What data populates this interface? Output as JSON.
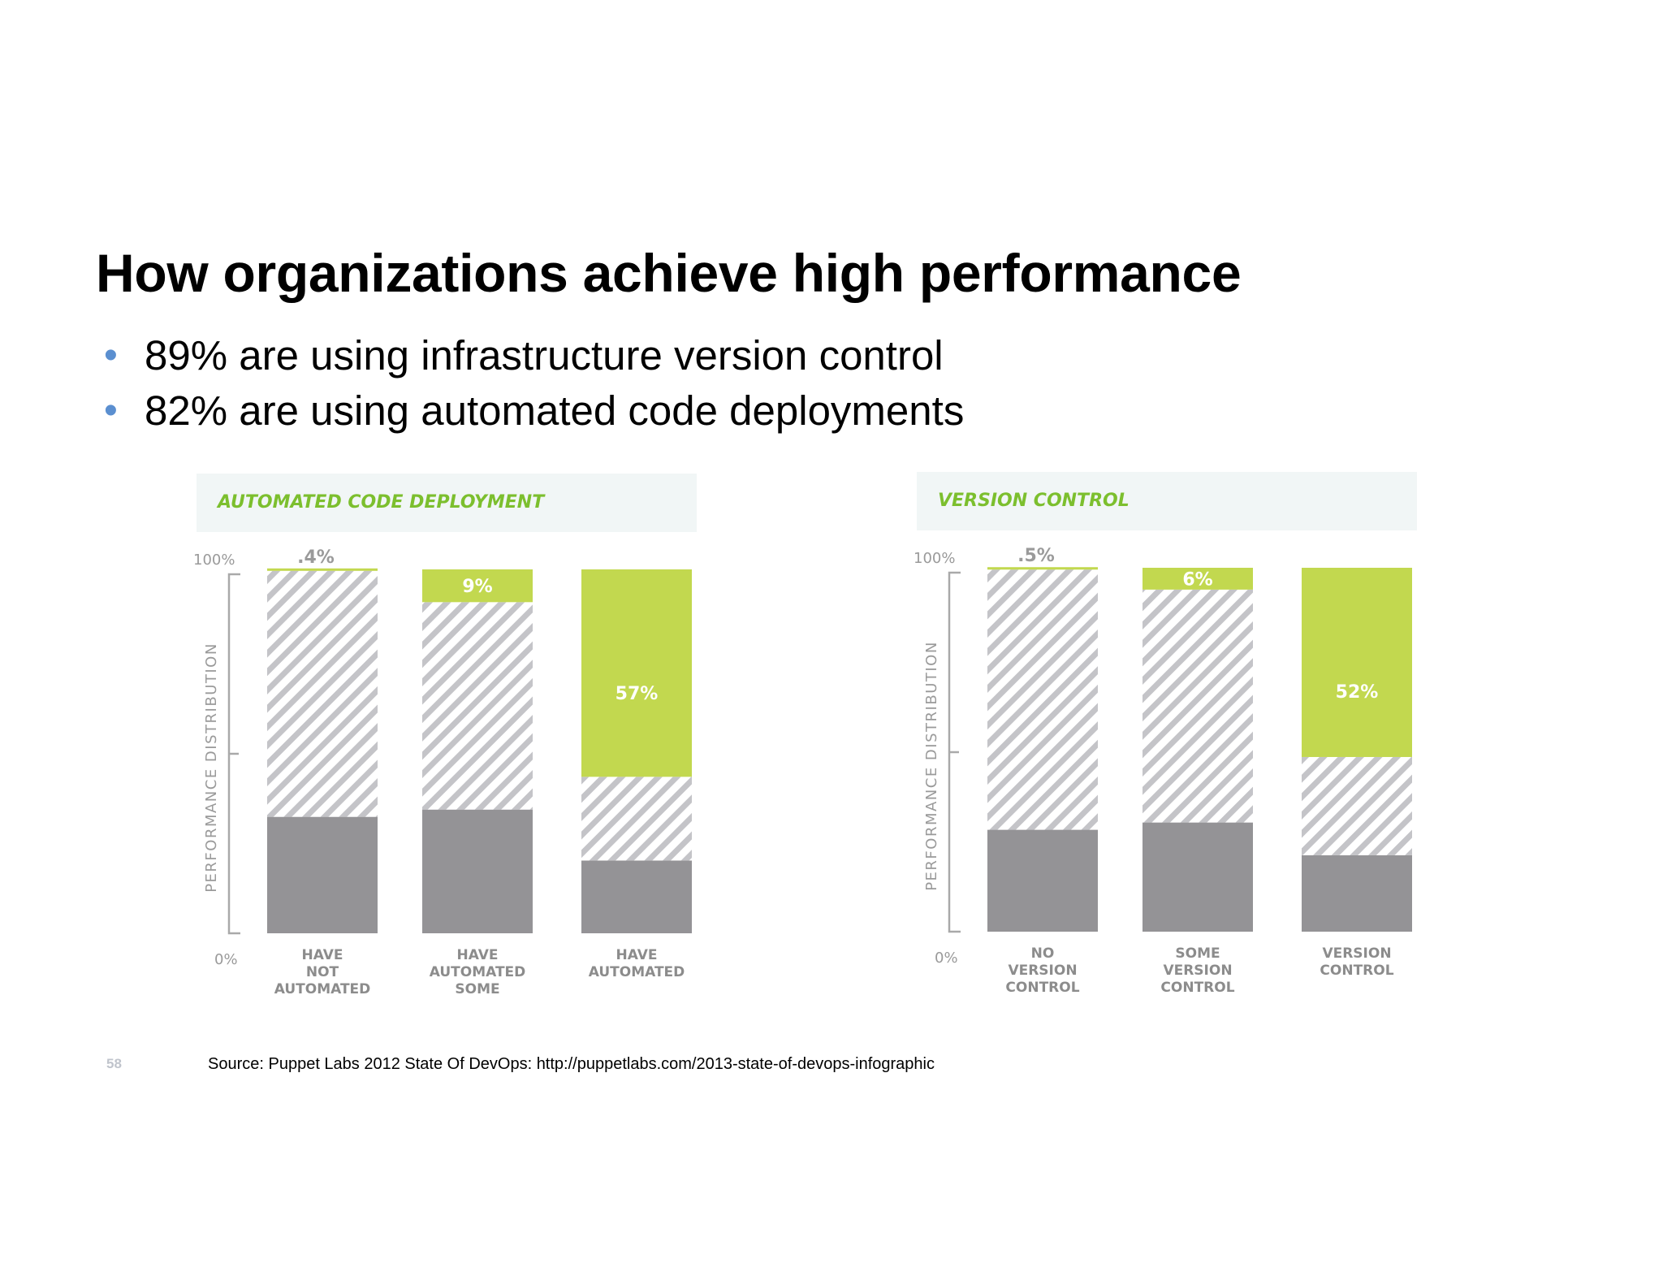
{
  "slide": {
    "title": "How organizations achieve high performance",
    "bullets": [
      "89% are using infrastructure version control",
      "82% are using automated code deployments"
    ],
    "bullet_color": "#5b8fd0",
    "page_number": "58",
    "source": "Source: Puppet Labs 2012 State Of DevOps: http://puppetlabs.com/2013-state-of-devops-infographic"
  },
  "colors": {
    "high": "#c2d84f",
    "medium_stripe": "#c4c4c8",
    "low": "#949396",
    "title_green": "#7cbf2e",
    "header_bg": "#f1f6f6"
  },
  "chart_data": [
    {
      "type": "bar",
      "stacked": true,
      "title": "AUTOMATED CODE DEPLOYMENT",
      "ylabel": "PERFORMANCE DISTRIBUTION",
      "y_top_label": "100%",
      "y_bottom_label": "0%",
      "ylim": [
        0,
        100
      ],
      "categories": [
        [
          "HAVE",
          "NOT",
          "AUTOMATED"
        ],
        [
          "HAVE",
          "AUTOMATED",
          "SOME"
        ],
        [
          "HAVE",
          "AUTOMATED"
        ]
      ],
      "series": [
        {
          "key": "low",
          "values": [
            32,
            34,
            20
          ]
        },
        {
          "key": "medium",
          "values": [
            67.6,
            57,
            23
          ]
        },
        {
          "key": "high",
          "values": [
            0.4,
            9,
            57
          ]
        }
      ],
      "value_labels": [
        ".4%",
        "9%",
        "57%"
      ]
    },
    {
      "type": "bar",
      "stacked": true,
      "title": "VERSION CONTROL",
      "ylabel": "PERFORMANCE DISTRIBUTION",
      "y_top_label": "100%",
      "y_bottom_label": "0%",
      "ylim": [
        0,
        100
      ],
      "categories": [
        [
          "NO",
          "VERSION",
          "CONTROL"
        ],
        [
          "SOME",
          "VERSION",
          "CONTROL"
        ],
        [
          "VERSION",
          "CONTROL"
        ]
      ],
      "series": [
        {
          "key": "low",
          "values": [
            28,
            30,
            21
          ]
        },
        {
          "key": "medium",
          "values": [
            71.5,
            64,
            27
          ]
        },
        {
          "key": "high",
          "values": [
            0.5,
            6,
            52
          ]
        }
      ],
      "value_labels": [
        ".5%",
        "6%",
        "52%"
      ]
    }
  ]
}
